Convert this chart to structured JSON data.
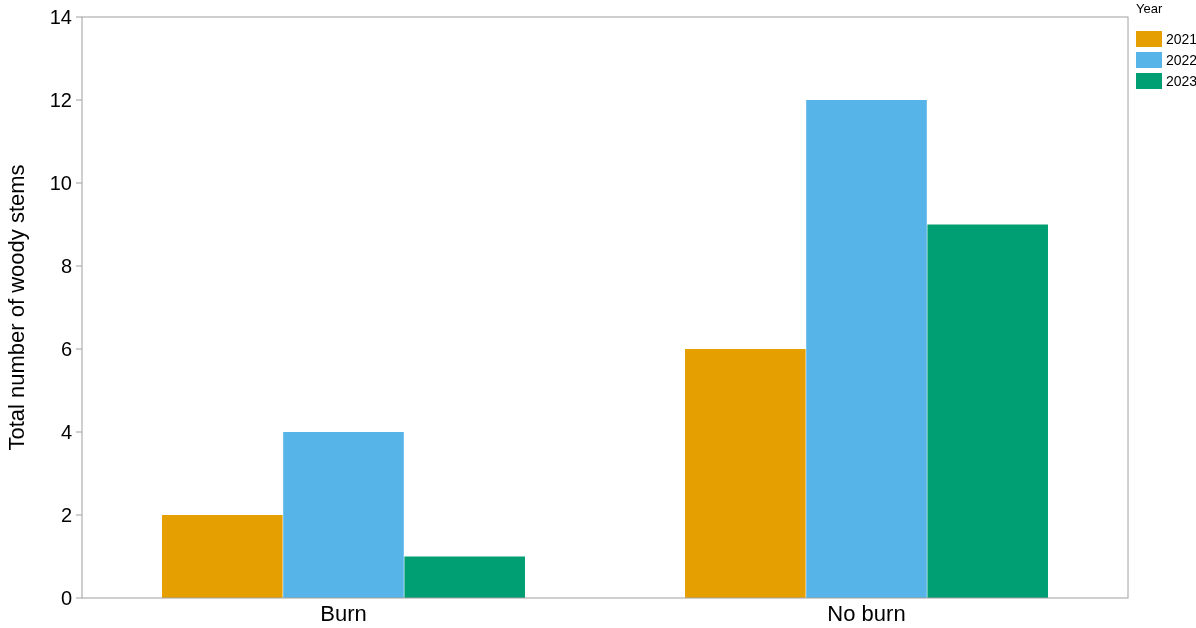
{
  "chart_data": {
    "type": "bar",
    "ylabel": "Total number of woody stems",
    "legend_title": "Year",
    "categories": [
      "Burn",
      "No burn"
    ],
    "series": [
      {
        "name": "2021",
        "color": "#e69f00",
        "values": [
          2,
          6
        ]
      },
      {
        "name": "2022",
        "color": "#56b4e9",
        "values": [
          4,
          12
        ]
      },
      {
        "name": "2023",
        "color": "#009e73",
        "values": [
          1,
          9
        ]
      }
    ],
    "ylim": [
      0,
      14
    ],
    "yticks": [
      0,
      2,
      4,
      6,
      8,
      10,
      12,
      14
    ],
    "grid": false,
    "legend": "top right"
  }
}
